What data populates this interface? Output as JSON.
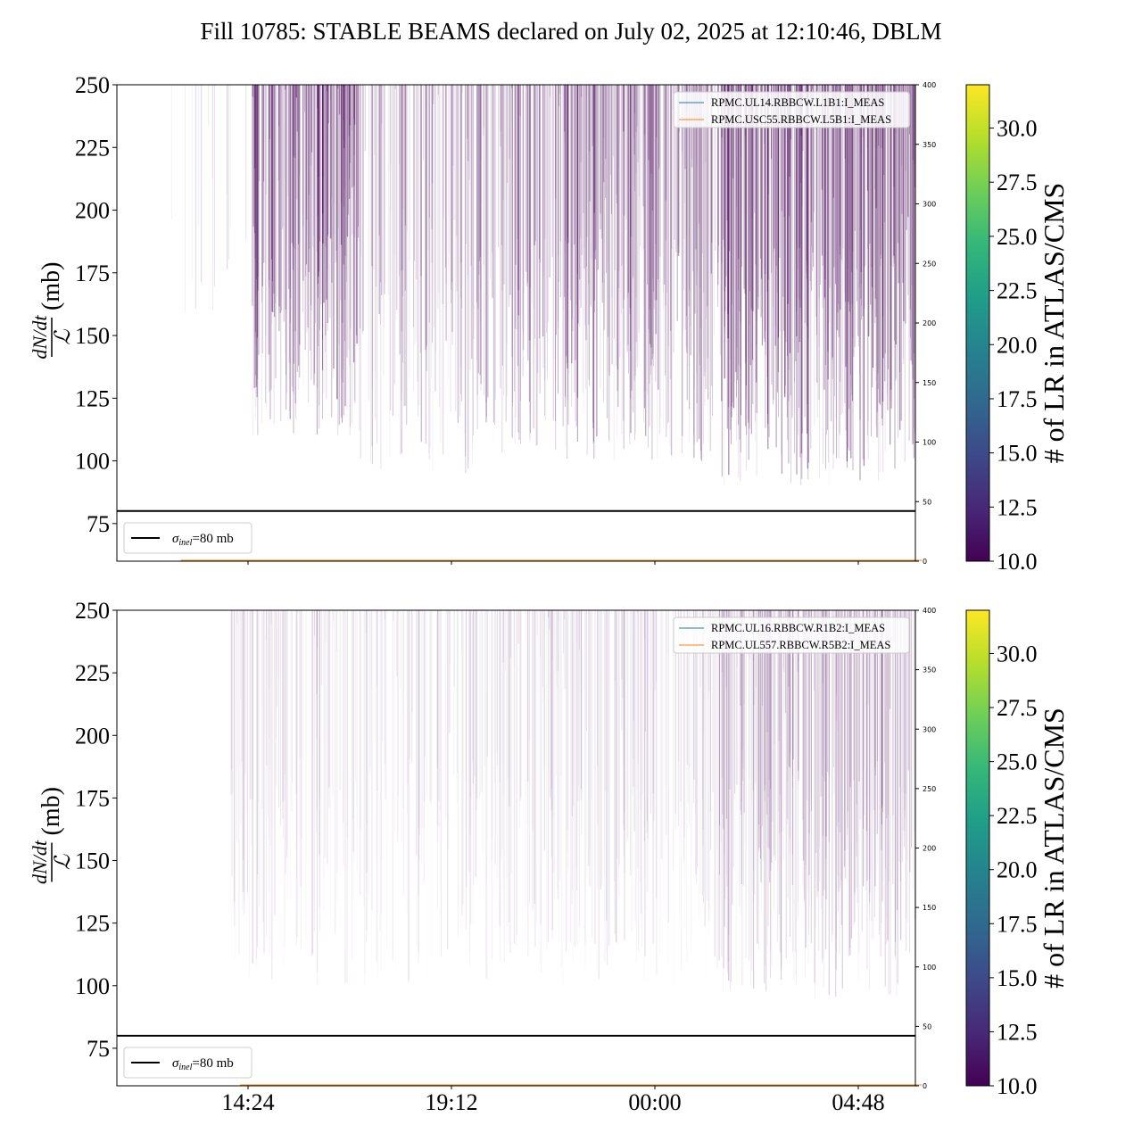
{
  "figure": {
    "title": "Fill 10785: STABLE BEAMS declared on July 02, 2025 at 12:10:46, DBLM"
  },
  "colormap": {
    "name": "viridis",
    "label": "# of LR in ATLAS/CMS",
    "range": [
      10.0,
      32.0
    ],
    "ticks": [
      "10.0",
      "12.5",
      "15.0",
      "17.5",
      "20.0",
      "22.5",
      "25.0",
      "27.5",
      "30.0"
    ],
    "stops": [
      "#440154",
      "#482878",
      "#3e4989",
      "#31688e",
      "#26828e",
      "#1f9e89",
      "#35b779",
      "#6ece58",
      "#b5de2b",
      "#fde725"
    ]
  },
  "chart_data": [
    {
      "type": "line",
      "panel": "top",
      "ylabel_numerator": "dN/dt",
      "ylabel_denominator": "ℒ",
      "ylabel_unit": "(mb)",
      "ylim": [
        60,
        250
      ],
      "yticks": [
        75,
        100,
        125,
        150,
        175,
        200,
        225,
        250
      ],
      "y2lim": [
        0,
        400
      ],
      "y2ticks": [
        0,
        50,
        100,
        150,
        200,
        250,
        300,
        350,
        400
      ],
      "xticks": [
        "14:24",
        "19:12",
        "00:00",
        "04:48"
      ],
      "show_xtick_labels": false,
      "reference_line": {
        "y": 80,
        "label_symbol": "σ",
        "label_sub": "inel",
        "label_value": "=80 mb",
        "color": "#000000"
      },
      "legend": {
        "placement": "top-right",
        "entries": [
          {
            "label": "RPMC.UL14.RBBCW.L1B1:I_MEAS",
            "color": "#1f77b4"
          },
          {
            "label": "RPMC.USC55.RBBCW.L5B1:I_MEAS",
            "color": "#ff7f0e"
          }
        ]
      },
      "density": {
        "description_values": "vertical spikes of per-bunch loss cross-section, colored by LR count",
        "start_hour": 12.6,
        "end_hour": 30.3,
        "segments": [
          {
            "from": 12.6,
            "to": 14.5,
            "density": 0.08,
            "floor": 130,
            "intensity": 0.25
          },
          {
            "from": 14.5,
            "to": 17.0,
            "density": 0.95,
            "floor": 110,
            "intensity": 0.75
          },
          {
            "from": 17.0,
            "to": 20.5,
            "density": 0.55,
            "floor": 95,
            "intensity": 0.45
          },
          {
            "from": 20.5,
            "to": 25.5,
            "density": 0.8,
            "floor": 100,
            "intensity": 0.6
          },
          {
            "from": 25.5,
            "to": 30.3,
            "density": 0.95,
            "floor": 90,
            "intensity": 0.8
          }
        ]
      }
    },
    {
      "type": "line",
      "panel": "bottom",
      "ylabel_numerator": "dN/dt",
      "ylabel_denominator": "ℒ",
      "ylabel_unit": "(mb)",
      "ylim": [
        60,
        250
      ],
      "yticks": [
        75,
        100,
        125,
        150,
        175,
        200,
        225,
        250
      ],
      "y2lim": [
        0,
        400
      ],
      "y2ticks": [
        0,
        50,
        100,
        150,
        200,
        250,
        300,
        350,
        400
      ],
      "xticks": [
        "14:24",
        "19:12",
        "00:00",
        "04:48"
      ],
      "show_xtick_labels": true,
      "reference_line": {
        "y": 80,
        "label_symbol": "σ",
        "label_sub": "inel",
        "label_value": "=80 mb",
        "color": "#000000"
      },
      "legend": {
        "placement": "top-right",
        "entries": [
          {
            "label": "RPMC.UL16.RBBCW.R1B2:I_MEAS",
            "color": "#1f77b4"
          },
          {
            "label": "RPMC.UL557.RBBCW.R5B2:I_MEAS",
            "color": "#ff7f0e"
          }
        ]
      },
      "density": {
        "start_hour": 14.0,
        "end_hour": 30.3,
        "segments": [
          {
            "from": 14.0,
            "to": 20.5,
            "density": 0.45,
            "floor": 100,
            "intensity": 0.18
          },
          {
            "from": 20.5,
            "to": 25.5,
            "density": 0.5,
            "floor": 100,
            "intensity": 0.2
          },
          {
            "from": 25.5,
            "to": 30.3,
            "density": 0.75,
            "floor": 95,
            "intensity": 0.35
          }
        ]
      }
    }
  ]
}
